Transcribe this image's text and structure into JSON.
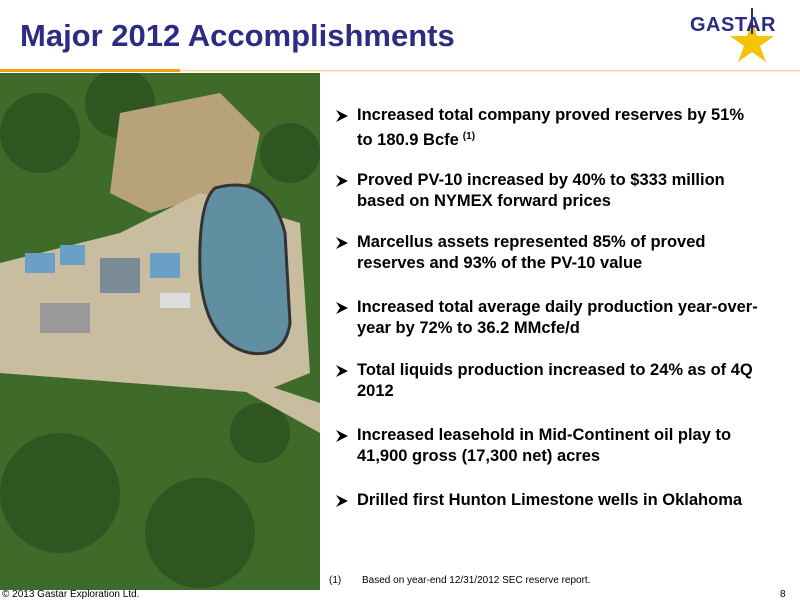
{
  "header": {
    "title": "Major 2012 Accomplishments",
    "logo": "GASTAR"
  },
  "bullets": [
    {
      "text": "Increased total company proved reserves by 51% to 180.9 Bcfe",
      "note": "(1)"
    },
    {
      "text": "Proved PV-10 increased by 40% to $333 million based on NYMEX forward prices"
    },
    {
      "text": "Marcellus assets represented 85% of proved reserves and 93% of the PV-10 value"
    },
    {
      "text": "Increased total average daily production year-over-year by 72% to 36.2 MMcfe/d"
    },
    {
      "text": "Total liquids production increased to 24% as of 4Q 2012"
    },
    {
      "text": "Increased leasehold in Mid-Continent oil play to 41,900 gross (17,300 net) acres"
    },
    {
      "text": "Drilled first Hunton Limestone wells in Oklahoma"
    }
  ],
  "footnote": {
    "marker": "(1)",
    "text": "Based on year-end 12/31/2012 SEC reserve report."
  },
  "footer": {
    "copyright": "© 2013 Gastar Exploration Ltd.",
    "page": "8"
  }
}
